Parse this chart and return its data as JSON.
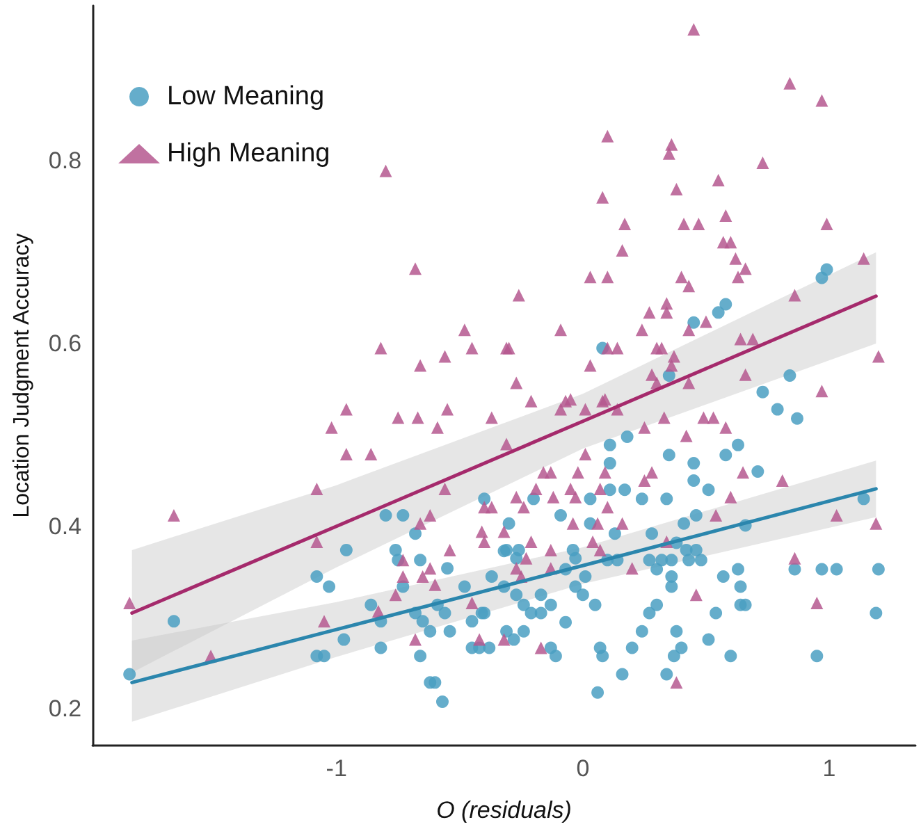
{
  "chart_data": {
    "type": "scatter",
    "xlabel": "O (residuals)",
    "ylabel": "Location Judgment Accuracy",
    "xlim": [
      -1.99,
      1.35
    ],
    "ylim": [
      0.16,
      0.97
    ],
    "xticks": [
      -1,
      0,
      1
    ],
    "yticks": [
      0.2,
      0.4,
      0.6,
      0.8
    ],
    "grid": false,
    "legend": "top left",
    "series": [
      {
        "name": "Low Meaning",
        "color": "#4a9fc2",
        "marker": "circle",
        "x": [
          0.08,
          0.45,
          0.55,
          0.58,
          0.97,
          0.99,
          0.35,
          0.84,
          0.73,
          0.79,
          0.87,
          0.11,
          0.18,
          0.11,
          0.35,
          0.45,
          0.58,
          0.63,
          0.71,
          0.45,
          0.51,
          0.11,
          0.17,
          -0.2,
          0.03,
          0.24,
          0.34,
          -0.09,
          0.03,
          0.13,
          0.28,
          0.41,
          0.46,
          0.66,
          1.14,
          -0.3,
          -0.31,
          -0.26,
          -0.27,
          -0.37,
          -0.04,
          -0.03,
          0.1,
          0.14,
          0.27,
          0.32,
          0.36,
          0.38,
          0.42,
          0.46,
          0.43,
          0.48,
          0.3,
          0.36,
          0.36,
          0.63,
          0.57,
          0.64,
          0.86,
          0.97,
          1.03,
          1.2,
          0.01,
          -0.03,
          0.0,
          -0.07,
          -0.13,
          -0.17,
          -0.24,
          -0.21,
          -0.17,
          -0.27,
          0.05,
          0.3,
          0.27,
          0.54,
          0.64,
          0.66,
          1.19,
          -0.4,
          -0.31,
          -0.28,
          -0.24,
          -0.07,
          -0.13,
          -0.11,
          -0.38,
          0.24,
          0.38,
          0.2,
          0.4,
          0.51,
          0.07,
          0.08,
          0.37,
          0.6,
          0.95,
          0.16,
          0.34,
          0.06,
          -0.4,
          -0.8,
          -0.73,
          -0.68,
          -0.96,
          -0.76,
          -0.75,
          -0.66,
          -0.55,
          -1.08,
          -1.03,
          -0.73,
          -0.48,
          -0.32,
          -0.32,
          -0.86,
          -0.59,
          -1.66,
          -0.82,
          -0.68,
          -0.65,
          -0.56,
          -0.41,
          -0.45,
          -0.62,
          -0.54,
          -0.97,
          -0.82,
          -0.45,
          -0.42,
          -1.08,
          -1.05,
          -0.66,
          -0.62,
          -0.6,
          -0.57,
          -1.84
        ],
        "values": [
          0.595,
          0.623,
          0.634,
          0.643,
          0.672,
          0.681,
          0.565,
          0.565,
          0.547,
          0.528,
          0.518,
          0.489,
          0.498,
          0.469,
          0.478,
          0.469,
          0.478,
          0.489,
          0.46,
          0.45,
          0.44,
          0.44,
          0.44,
          0.43,
          0.43,
          0.43,
          0.43,
          0.412,
          0.403,
          0.392,
          0.392,
          0.403,
          0.412,
          0.401,
          0.43,
          0.403,
          0.374,
          0.374,
          0.365,
          0.345,
          0.374,
          0.365,
          0.363,
          0.363,
          0.363,
          0.363,
          0.363,
          0.382,
          0.374,
          0.374,
          0.363,
          0.363,
          0.353,
          0.345,
          0.334,
          0.353,
          0.345,
          0.334,
          0.353,
          0.353,
          0.353,
          0.353,
          0.345,
          0.334,
          0.325,
          0.353,
          0.314,
          0.325,
          0.314,
          0.305,
          0.305,
          0.325,
          0.314,
          0.314,
          0.305,
          0.305,
          0.314,
          0.314,
          0.305,
          0.305,
          0.285,
          0.276,
          0.285,
          0.295,
          0.267,
          0.258,
          0.267,
          0.285,
          0.285,
          0.267,
          0.267,
          0.276,
          0.267,
          0.258,
          0.258,
          0.258,
          0.258,
          0.238,
          0.238,
          0.218,
          0.43,
          0.412,
          0.412,
          0.392,
          0.374,
          0.374,
          0.363,
          0.363,
          0.354,
          0.345,
          0.334,
          0.334,
          0.334,
          0.373,
          0.334,
          0.314,
          0.314,
          0.296,
          0.296,
          0.305,
          0.296,
          0.305,
          0.305,
          0.296,
          0.285,
          0.285,
          0.276,
          0.267,
          0.267,
          0.267,
          0.258,
          0.258,
          0.258,
          0.229,
          0.229,
          0.208,
          0.238
        ]
      },
      {
        "name": "High Meaning",
        "color": "#b5588f",
        "marker": "triangle",
        "x": [
          -0.8,
          -0.68,
          -0.48,
          -0.82,
          -0.66,
          -0.56,
          -0.45,
          -0.31,
          -0.96,
          -0.55,
          0.45,
          0.84,
          0.97,
          0.1,
          0.36,
          0.35,
          0.73,
          0.55,
          0.08,
          0.38,
          0.58,
          0.17,
          0.41,
          0.47,
          0.99,
          0.57,
          0.6,
          0.16,
          0.62,
          0.66,
          0.63,
          1.14,
          0.03,
          0.1,
          0.4,
          0.43,
          -0.26,
          0.86,
          0.34,
          0.27,
          0.34,
          0.5,
          -0.09,
          0.24,
          0.43,
          -0.3,
          0.1,
          0.14,
          0.3,
          0.32,
          0.64,
          0.69,
          0.37,
          1.2,
          0.03,
          0.36,
          -0.27,
          0.28,
          0.66,
          0.43,
          0.3,
          0.97,
          -0.21,
          -0.07,
          0.08,
          -0.09,
          0.01,
          -1.02,
          -0.75,
          -0.67,
          -0.59,
          -0.37,
          -0.96,
          -0.86,
          -0.31,
          -1.08,
          -0.56,
          -0.05,
          0.09,
          0.14,
          0.25,
          0.33,
          0.42,
          0.49,
          0.53,
          0.58,
          0.01,
          -0.16,
          -0.13,
          -0.02,
          0.09,
          0.28,
          0.65,
          0.81,
          -0.19,
          -0.05,
          0.07,
          0.25,
          -1.66,
          -1.08,
          -0.66,
          -0.62,
          -0.4,
          -0.37,
          -0.41,
          -0.4,
          -0.32,
          -0.54,
          -0.73,
          -0.62,
          -0.73,
          -0.65,
          -0.6,
          -0.76,
          -0.83,
          -0.45,
          -1.05,
          -0.68,
          -0.42,
          -0.32,
          -1.84,
          -1.51,
          -0.12,
          -0.03,
          0.1,
          0.16,
          0.6,
          0.54,
          1.03,
          1.19,
          -0.24,
          -0.27,
          -0.21,
          -0.23,
          -0.27,
          -0.25,
          -0.13,
          -0.13,
          -0.04,
          0.06,
          0.04,
          0.07,
          0.2,
          0.34,
          0.86,
          0.46,
          0.95,
          -0.17,
          0.38
        ],
        "values": [
          0.789,
          0.682,
          0.615,
          0.595,
          0.576,
          0.586,
          0.595,
          0.595,
          0.528,
          0.528,
          0.944,
          0.885,
          0.866,
          0.827,
          0.818,
          0.808,
          0.798,
          0.779,
          0.76,
          0.769,
          0.74,
          0.731,
          0.731,
          0.731,
          0.731,
          0.711,
          0.711,
          0.702,
          0.693,
          0.682,
          0.673,
          0.693,
          0.673,
          0.673,
          0.673,
          0.663,
          0.653,
          0.653,
          0.644,
          0.634,
          0.634,
          0.624,
          0.615,
          0.615,
          0.615,
          0.595,
          0.595,
          0.595,
          0.595,
          0.595,
          0.605,
          0.605,
          0.586,
          0.586,
          0.576,
          0.576,
          0.557,
          0.566,
          0.566,
          0.557,
          0.557,
          0.548,
          0.537,
          0.537,
          0.537,
          0.528,
          0.528,
          0.508,
          0.519,
          0.519,
          0.508,
          0.519,
          0.479,
          0.479,
          0.49,
          0.441,
          0.441,
          0.539,
          0.539,
          0.528,
          0.508,
          0.519,
          0.499,
          0.519,
          0.519,
          0.508,
          0.479,
          0.459,
          0.459,
          0.459,
          0.459,
          0.459,
          0.459,
          0.45,
          0.441,
          0.441,
          0.441,
          0.45,
          0.412,
          0.383,
          0.403,
          0.412,
          0.421,
          0.421,
          0.394,
          0.383,
          0.394,
          0.374,
          0.363,
          0.354,
          0.345,
          0.345,
          0.336,
          0.325,
          0.307,
          0.316,
          0.296,
          0.276,
          0.276,
          0.276,
          0.316,
          0.258,
          0.432,
          0.432,
          0.421,
          0.403,
          0.432,
          0.412,
          0.412,
          0.403,
          0.421,
          0.432,
          0.383,
          0.365,
          0.354,
          0.345,
          0.374,
          0.354,
          0.403,
          0.403,
          0.383,
          0.374,
          0.354,
          0.383,
          0.365,
          0.325,
          0.316,
          0.267,
          0.229
        ]
      },
      {
        "type": "line",
        "color": "#2b86ad",
        "marker": "none",
        "x": [
          -1.83,
          -1,
          0,
          1.19
        ],
        "values": [
          0.229,
          0.287,
          0.357,
          0.441
        ],
        "lower": [
          0.186,
          0.257,
          0.337,
          0.41
        ],
        "upper": [
          0.275,
          0.317,
          0.377,
          0.472
        ]
      },
      {
        "type": "line",
        "color": "#a52a6c",
        "marker": "none",
        "x": [
          -1.83,
          -1,
          0,
          1.19
        ],
        "values": [
          0.305,
          0.4,
          0.515,
          0.652
        ],
        "lower": [
          0.24,
          0.355,
          0.485,
          0.6
        ],
        "upper": [
          0.374,
          0.445,
          0.545,
          0.7
        ]
      }
    ]
  }
}
